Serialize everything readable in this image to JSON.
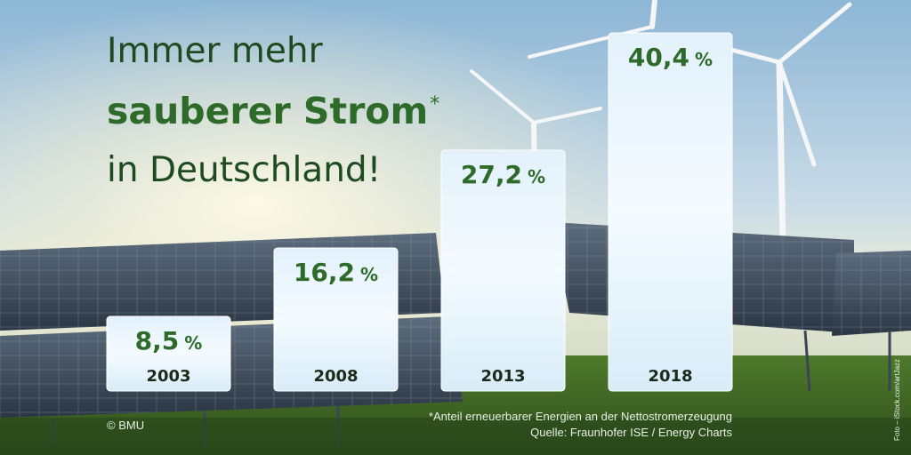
{
  "headline": {
    "line1": "Immer mehr",
    "line2": "sauberer Strom",
    "asterisk": "*",
    "line3": "in Deutschland!"
  },
  "chart_data": {
    "type": "bar",
    "categories": [
      "2003",
      "2008",
      "2013",
      "2018"
    ],
    "values": [
      8.5,
      16.2,
      27.2,
      40.4
    ],
    "value_labels": [
      "8,5",
      "16,2",
      "27,2",
      "40,4"
    ],
    "unit": "%",
    "ylim": [
      0,
      45
    ],
    "grid": false
  },
  "footnote": {
    "line1": "*Anteil erneuerbarer Energien an der Nettostromerzeugung",
    "line2": "Quelle: Fraunhofer ISE / Energy Charts"
  },
  "credit": "© BMU",
  "photo_credit": "Foto – iStock.com/artJazz",
  "colors": {
    "headline_dark": "#1e4a1f",
    "headline_green": "#2e6b2a",
    "value_green": "#2e6b2a",
    "bar_fill": "#eaf6fd"
  }
}
